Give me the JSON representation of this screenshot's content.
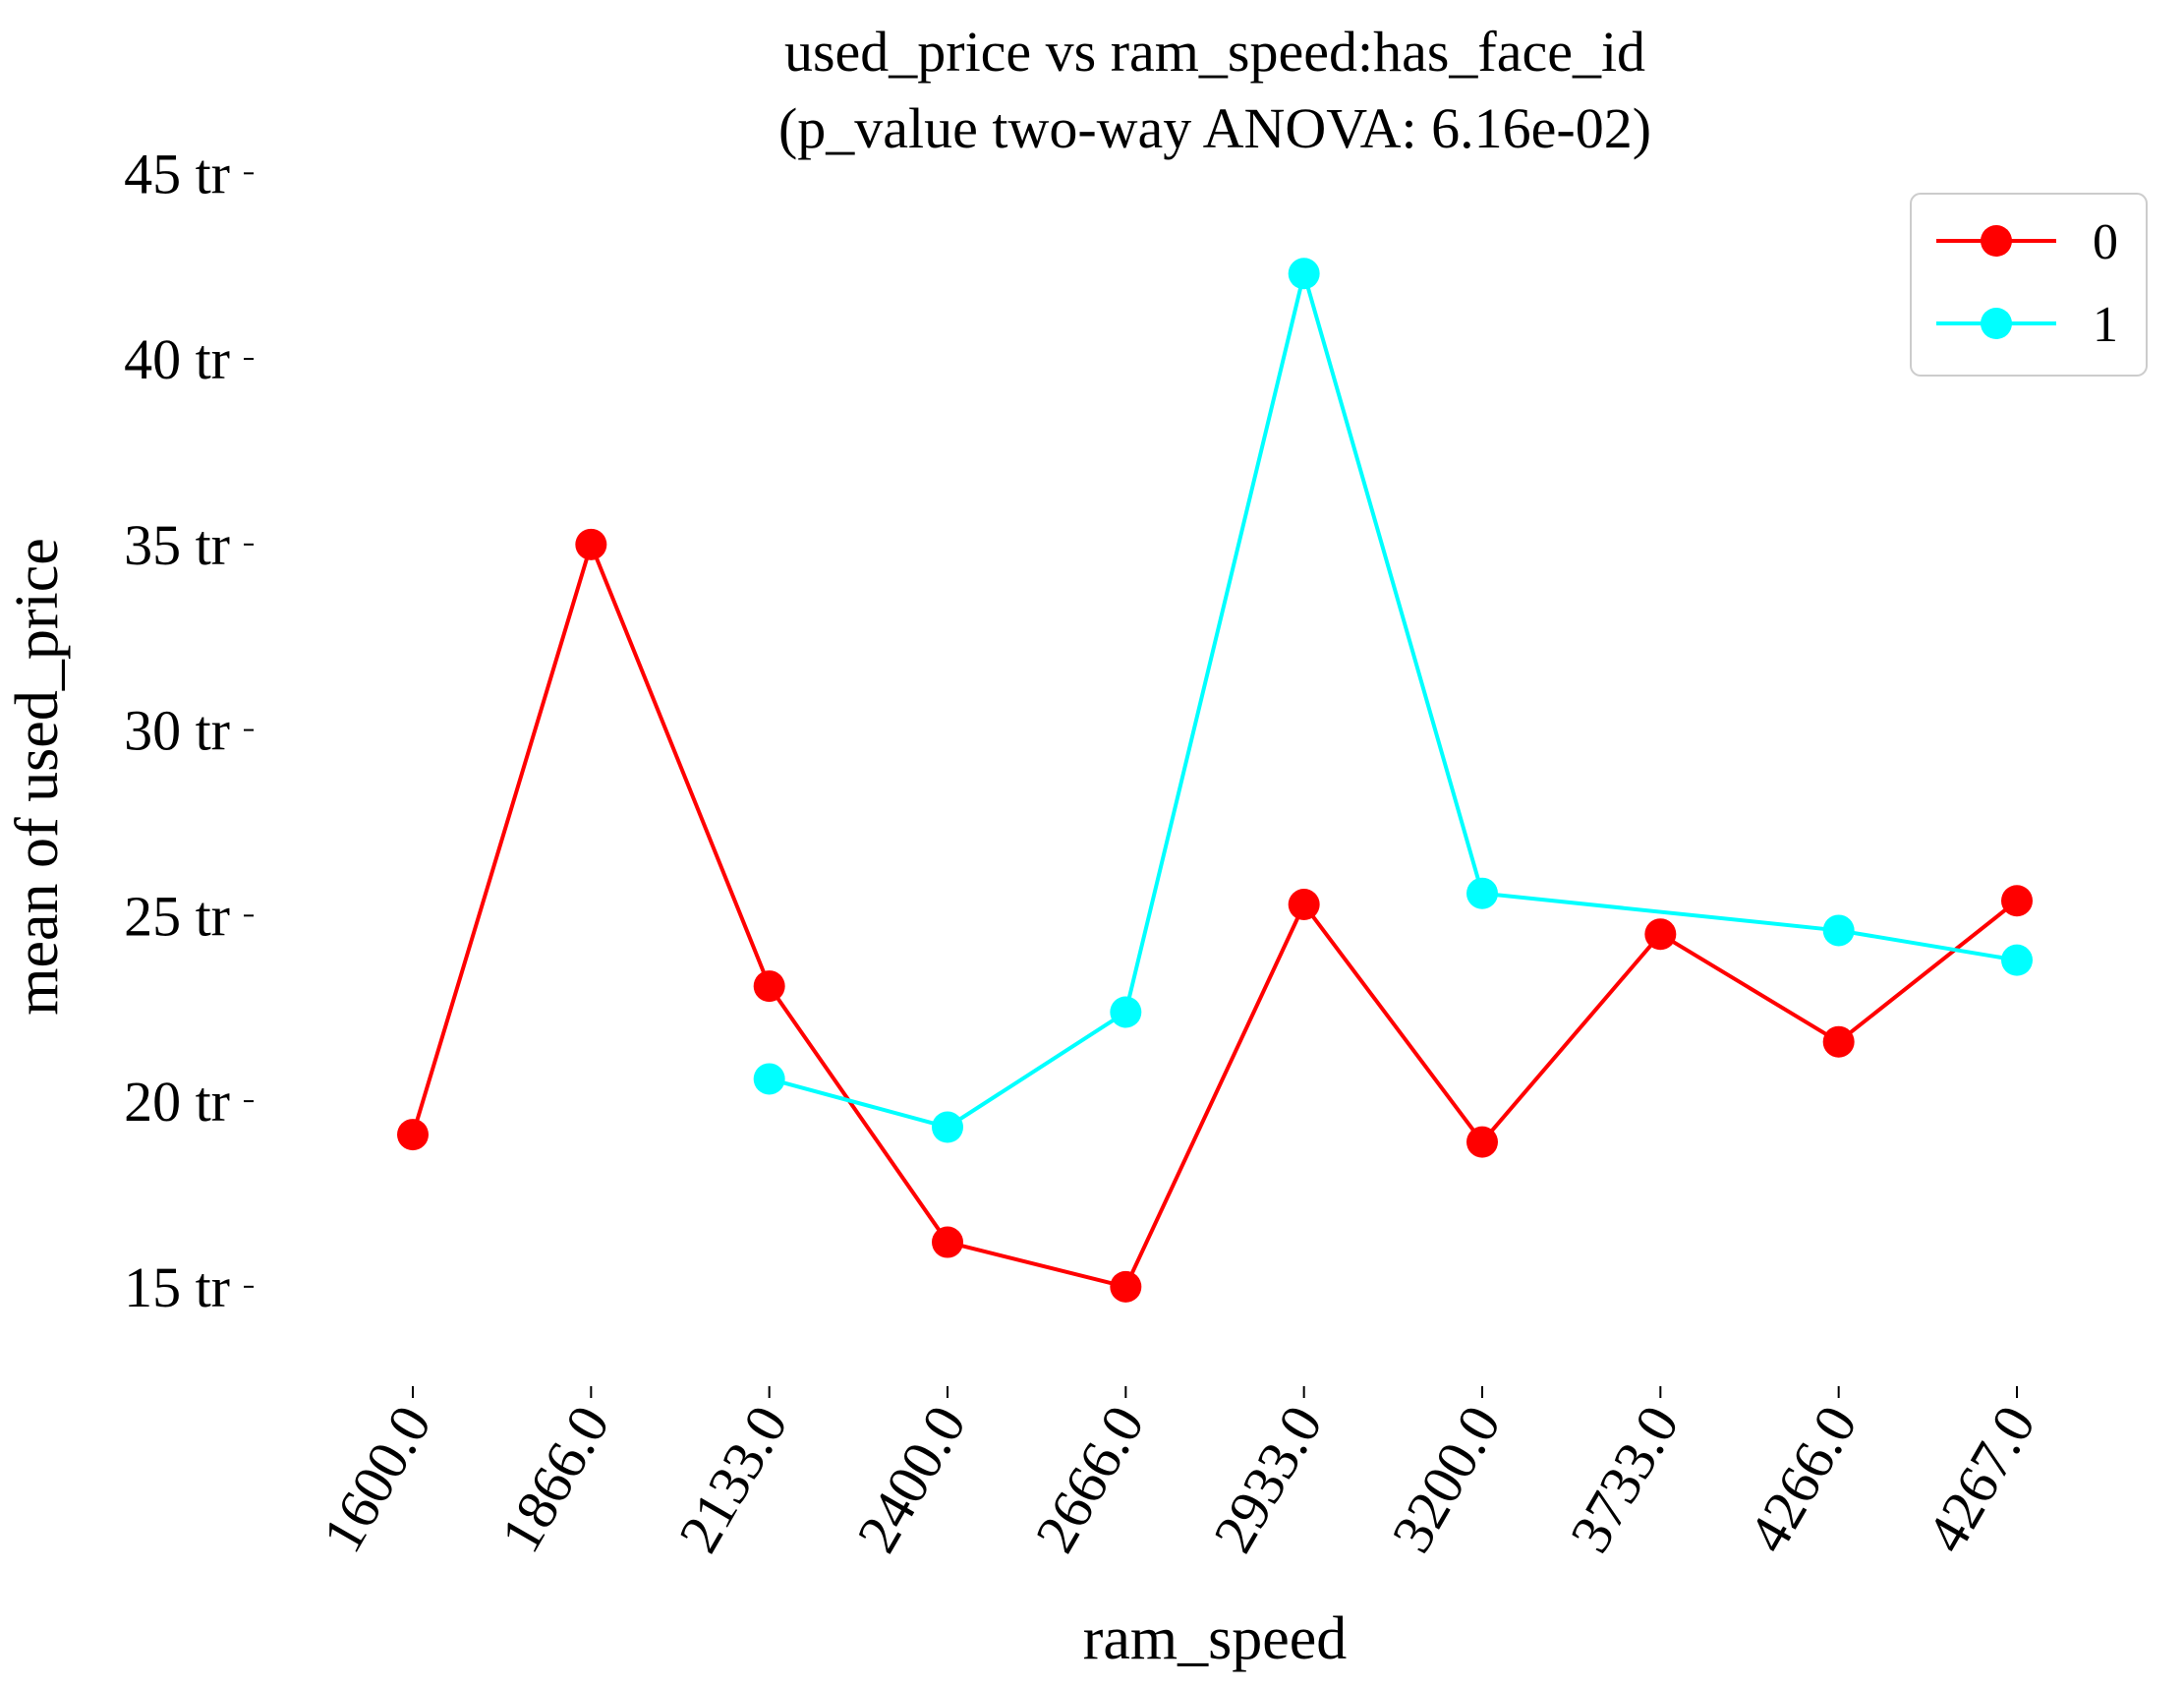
{
  "chart_data": {
    "type": "line",
    "title": "used_price vs ram_speed:has_face_id",
    "subtitle": "(p_value two-way ANOVA: 6.16e-02)",
    "xlabel": "ram_speed",
    "ylabel": "mean of used_price",
    "categories": [
      "1600.0",
      "1866.0",
      "2133.0",
      "2400.0",
      "2666.0",
      "2933.0",
      "3200.0",
      "3733.0",
      "4266.0",
      "4267.0"
    ],
    "yticks": [
      15,
      20,
      25,
      30,
      35,
      40,
      45
    ],
    "ytick_labels": [
      "15 tr",
      "20 tr",
      "25 tr",
      "30 tr",
      "35 tr",
      "40 tr",
      "45 tr"
    ],
    "ylim": [
      12.4,
      45.3
    ],
    "legend_position": "top-right",
    "grid": false,
    "series": [
      {
        "name": "0",
        "color": "#ff0000",
        "values": [
          19.1,
          35.0,
          23.1,
          16.2,
          15.0,
          25.3,
          18.9,
          24.5,
          21.6,
          25.4
        ]
      },
      {
        "name": "1",
        "color": "#00ffff",
        "values": [
          null,
          null,
          20.6,
          19.3,
          22.4,
          42.3,
          25.6,
          null,
          24.6,
          23.8
        ]
      }
    ]
  }
}
